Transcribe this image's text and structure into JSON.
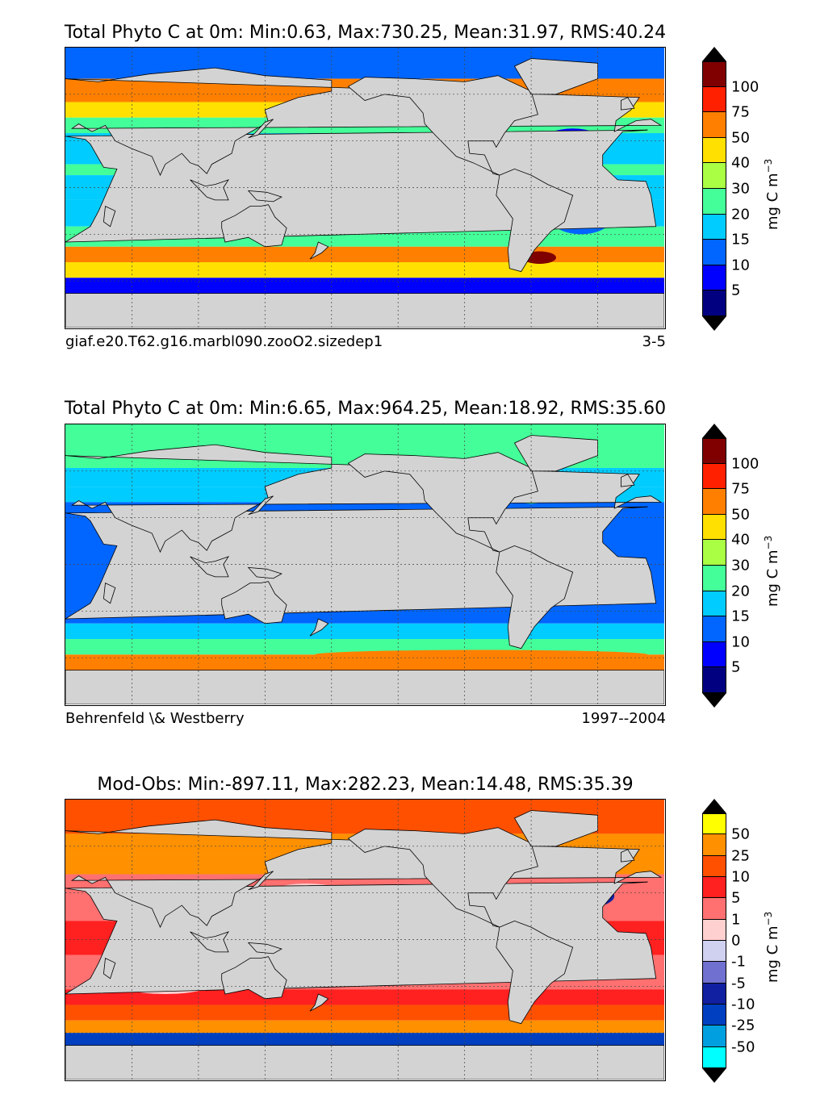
{
  "panels": [
    {
      "title": "Total Phyto C at 0m: Min:0.63, Max:730.25, Mean:31.97, RMS:40.24",
      "caption_left": "giaf.e20.T62.g16.marbl090.zooO2.sizedep1",
      "caption_right": "3-5",
      "colorbar_label": "mg C m",
      "colorbar_label_exp": "−3",
      "colorbar_ticks": [
        "5",
        "10",
        "15",
        "20",
        "30",
        "40",
        "50",
        "75",
        "100"
      ],
      "colorbar_colors": [
        "#000080",
        "#0000ff",
        "#0066ff",
        "#00ccff",
        "#44ff99",
        "#aaff44",
        "#ffe000",
        "#ff8000",
        "#ff2000",
        "#800000"
      ],
      "arrow_low_color": "#000000",
      "arrow_high_color": "#000000",
      "scheme": "model"
    },
    {
      "title": "Total Phyto C at 0m: Min:6.65, Max:964.25, Mean:18.92, RMS:35.60",
      "caption_left": "Behrenfeld \\& Westberry",
      "caption_right": "1997--2004",
      "colorbar_label": "mg C m",
      "colorbar_label_exp": "−3",
      "colorbar_ticks": [
        "5",
        "10",
        "15",
        "20",
        "30",
        "40",
        "50",
        "75",
        "100"
      ],
      "colorbar_colors": [
        "#000080",
        "#0000ff",
        "#0066ff",
        "#00ccff",
        "#44ff99",
        "#aaff44",
        "#ffe000",
        "#ff8000",
        "#ff2000",
        "#800000"
      ],
      "arrow_low_color": "#000000",
      "arrow_high_color": "#000000",
      "scheme": "obs"
    },
    {
      "title": "Mod-Obs: Min:-897.11, Max:282.23, Mean:14.48, RMS:35.39",
      "caption_left": "",
      "caption_right": "",
      "colorbar_label": "mg C m",
      "colorbar_label_exp": "−3",
      "colorbar_ticks": [
        "-50",
        "-25",
        "-10",
        "-5",
        "-1",
        "0",
        "1",
        "5",
        "10",
        "25",
        "50"
      ],
      "colorbar_colors": [
        "#00ffff",
        "#00a0e0",
        "#0040c0",
        "#1020a0",
        "#7070d0",
        "#d0d0f0",
        "#ffd0d0",
        "#ff7070",
        "#ff2020",
        "#ff5000",
        "#ff9000",
        "#ffff00"
      ],
      "arrow_low_color": "#000000",
      "arrow_high_color": "#000000",
      "scheme": "diff"
    }
  ],
  "chart_data": [
    {
      "type": "heatmap",
      "title": "Total Phyto C at 0m: Min:0.63, Max:730.25, Mean:31.97, RMS:40.24",
      "stats": {
        "min": 0.63,
        "max": 730.25,
        "mean": 31.97,
        "rms": 40.24
      },
      "colorbar_levels": [
        5,
        10,
        15,
        20,
        30,
        40,
        50,
        75,
        100
      ],
      "colorbar_label": "mg C m−3",
      "grid": true
    },
    {
      "type": "heatmap",
      "title": "Total Phyto C at 0m: Min:6.65, Max:964.25, Mean:18.92, RMS:35.60",
      "stats": {
        "min": 6.65,
        "max": 964.25,
        "mean": 18.92,
        "rms": 35.6
      },
      "colorbar_levels": [
        5,
        10,
        15,
        20,
        30,
        40,
        50,
        75,
        100
      ],
      "colorbar_label": "mg C m−3",
      "grid": true
    },
    {
      "type": "heatmap",
      "title": "Mod-Obs: Min:-897.11, Max:282.23, Mean:14.48, RMS:35.39",
      "stats": {
        "min": -897.11,
        "max": 282.23,
        "mean": 14.48,
        "rms": 35.39
      },
      "colorbar_levels": [
        -50,
        -25,
        -10,
        -5,
        -1,
        0,
        1,
        5,
        10,
        25,
        50
      ],
      "colorbar_label": "mg C m−3",
      "grid": true
    }
  ]
}
